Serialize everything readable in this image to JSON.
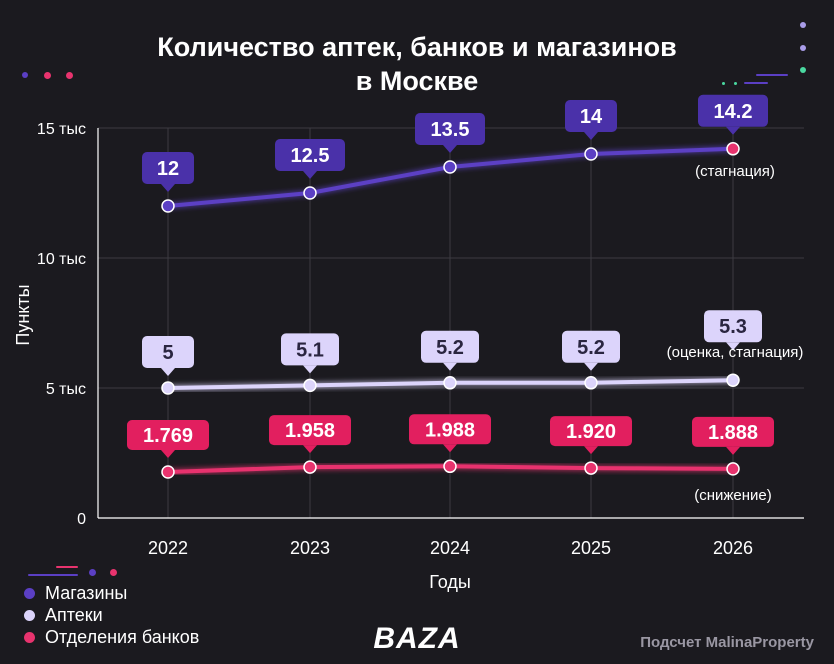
{
  "title": {
    "line1": "Количество аптек, банков и магазинов",
    "line2": "в Москве"
  },
  "colors": {
    "background": "#1b1a1f",
    "magaziny": "#5b3fc4",
    "apteki": "#dcd4fb",
    "banki": "#e8336e",
    "grid": "#3c3b42"
  },
  "chart_data": {
    "type": "line",
    "xlabel": "Годы",
    "ylabel": "Пункты",
    "categories": [
      "2022",
      "2023",
      "2024",
      "2025",
      "2026"
    ],
    "ylim": [
      0,
      15
    ],
    "yticks": [
      {
        "value": 0,
        "label": "0"
      },
      {
        "value": 5,
        "label": "5 тыс"
      },
      {
        "value": 10,
        "label": "10 тыс"
      },
      {
        "value": 15,
        "label": "15 тыс"
      }
    ],
    "series": [
      {
        "name": "Магазины",
        "color": "#5b3fc4",
        "values": [
          12,
          12.5,
          13.5,
          14,
          14.2
        ],
        "labels": [
          "12",
          "12.5",
          "13.5",
          "14",
          "14.2"
        ],
        "note": "(стагнация)"
      },
      {
        "name": "Аптеки",
        "color": "#dcd4fb",
        "values": [
          5,
          5.1,
          5.2,
          5.2,
          5.3
        ],
        "labels": [
          "5",
          "5.1",
          "5.2",
          "5.2",
          "5.3"
        ],
        "note": "(оценка, стагнация)"
      },
      {
        "name": "Отделения банков",
        "color": "#e8336e",
        "values": [
          1.769,
          1.958,
          1.988,
          1.92,
          1.888
        ],
        "labels": [
          "1.769",
          "1.958",
          "1.988",
          "1.920",
          "1.888"
        ],
        "note": "(снижение)"
      }
    ]
  },
  "legend": {
    "items": [
      {
        "label": "Магазины",
        "color": "#5b3fc4"
      },
      {
        "label": "Аптеки",
        "color": "#dcd4fb"
      },
      {
        "label": "Отделения банков",
        "color": "#e8336e"
      }
    ]
  },
  "footer": {
    "logo": "BAZA",
    "source": "Подсчет MalinaProperty"
  }
}
